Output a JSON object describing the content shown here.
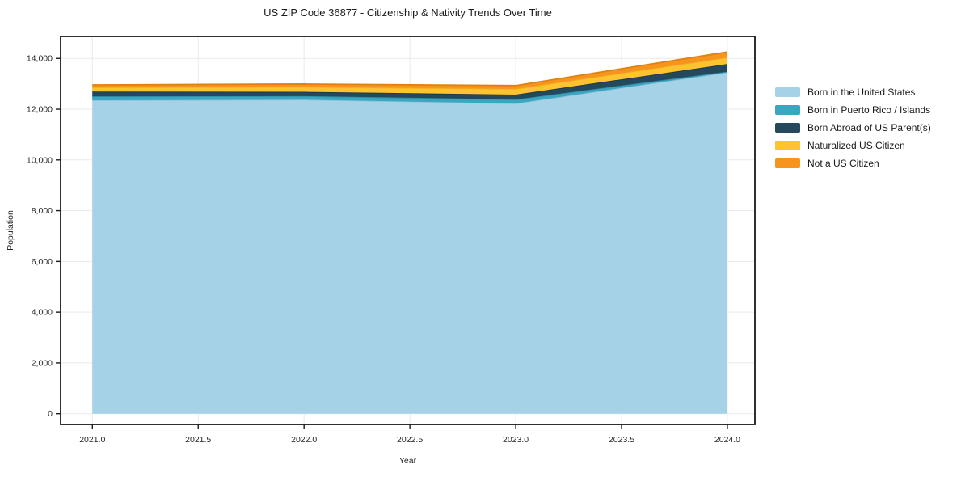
{
  "title": "US ZIP Code 36877 - Citizenship & Nativity Trends Over Time",
  "chart_data": {
    "type": "area",
    "stacked": true,
    "title": "US ZIP Code 36877 - Citizenship & Nativity Trends Over Time",
    "xlabel": "Year",
    "ylabel": "Population",
    "x": [
      2021,
      2022,
      2023,
      2024
    ],
    "series": [
      {
        "name": "Born in the United States",
        "color": "#a6d2e7",
        "edge_color": "#8ec2dc",
        "values": [
          12350,
          12375,
          12225,
          13450
        ]
      },
      {
        "name": "Born in Puerto Rico / Islands",
        "color": "#3aa6c0",
        "edge_color": "#2d8fa8",
        "values": [
          155,
          140,
          160,
          30
        ]
      },
      {
        "name": "Born Abroad of US Parent(s)",
        "color": "#24485c",
        "edge_color": "#1b3847",
        "values": [
          190,
          170,
          190,
          300
        ]
      },
      {
        "name": "Naturalized US Citizen",
        "color": "#fdc330",
        "edge_color": "#edb01b",
        "values": [
          165,
          200,
          225,
          260
        ]
      },
      {
        "name": "Not a US Citizen",
        "color": "#f7941e",
        "edge_color": "#e0810f",
        "values": [
          95,
          105,
          130,
          215
        ]
      }
    ],
    "xlim": [
      2020.85,
      2024.13
    ],
    "ylim": [
      -424,
      14868
    ],
    "xticks": {
      "values": [
        2021.0,
        2021.5,
        2022.0,
        2022.5,
        2023.0,
        2023.5,
        2024.0
      ],
      "labels": [
        "2021.0",
        "2021.5",
        "2022.0",
        "2022.5",
        "2023.0",
        "2023.5",
        "2024.0"
      ]
    },
    "yticks": {
      "values": [
        0,
        2000,
        4000,
        6000,
        8000,
        10000,
        12000,
        14000
      ],
      "labels": [
        "0",
        "2,000",
        "4,000",
        "6,000",
        "8,000",
        "10,000",
        "12,000",
        "14,000"
      ]
    },
    "grid": true,
    "grid_color": "#eaeaea",
    "frame_color": "#1a1a1a",
    "legend_position": "right outside"
  }
}
